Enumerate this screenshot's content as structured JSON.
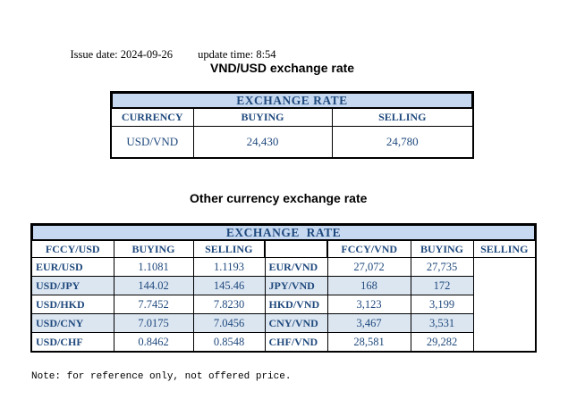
{
  "meta": {
    "issue_date": "Issue date: 2024-09-26",
    "update_time": "update time: 8:54"
  },
  "usd_table": {
    "title": "VND/USD exchange rate",
    "band": "EXCHANGE RATE",
    "headers": [
      "CURRENCY",
      "BUYING",
      "SELLING"
    ],
    "rows": [
      [
        "USD/VND",
        "24,430",
        "24,780"
      ]
    ]
  },
  "other_table": {
    "title": "Other currency exchange rate",
    "band": "EXCHANGE  RATE",
    "left_headers": [
      "FCCY/USD",
      "BUYING",
      "SELLING"
    ],
    "right_headers": [
      "FCCY/VND",
      "BUYING",
      "SELLING"
    ],
    "rows": [
      [
        "EUR/USD",
        "1.1081",
        "1.1193",
        "EUR/VND",
        "27,072",
        "27,735"
      ],
      [
        "USD/JPY",
        "144.02",
        "145.46",
        "JPY/VND",
        "168",
        "172"
      ],
      [
        "USD/HKD",
        "7.7452",
        "7.8230",
        "HKD/VND",
        "3,123",
        "3,199"
      ],
      [
        "USD/CNY",
        "7.0175",
        "7.0456",
        "CNY/VND",
        "3,467",
        "3,531"
      ],
      [
        "USD/CHF",
        "0.8462",
        "0.8548",
        "CHF/VND",
        "28,581",
        "29,282"
      ]
    ]
  },
  "note": "Note: for reference only, not offered price.",
  "colors": {
    "band_fill": "#c6d9f1",
    "row_stripe": "#dce6f1",
    "table_text": "#1f497d",
    "border": "#000000"
  },
  "chart_data": {
    "type": "table",
    "tables": [
      {
        "title": "VND/USD exchange rate",
        "columns": [
          "CURRENCY",
          "BUYING",
          "SELLING"
        ],
        "rows": [
          [
            "USD/VND",
            24430,
            24780
          ]
        ]
      },
      {
        "title": "Other currency exchange rate",
        "columns": [
          "FCCY/USD",
          "BUYING",
          "SELLING",
          "FCCY/VND",
          "BUYING",
          "SELLING"
        ],
        "rows": [
          [
            "EUR/USD",
            1.1081,
            1.1193,
            "EUR/VND",
            27072,
            27735
          ],
          [
            "USD/JPY",
            144.02,
            145.46,
            "JPY/VND",
            168,
            172
          ],
          [
            "USD/HKD",
            7.7452,
            7.823,
            "HKD/VND",
            3123,
            3199
          ],
          [
            "USD/CNY",
            7.0175,
            7.0456,
            "CNY/VND",
            3467,
            3531
          ],
          [
            "USD/CHF",
            0.8462,
            0.8548,
            "CHF/VND",
            28581,
            29282
          ]
        ]
      }
    ]
  }
}
